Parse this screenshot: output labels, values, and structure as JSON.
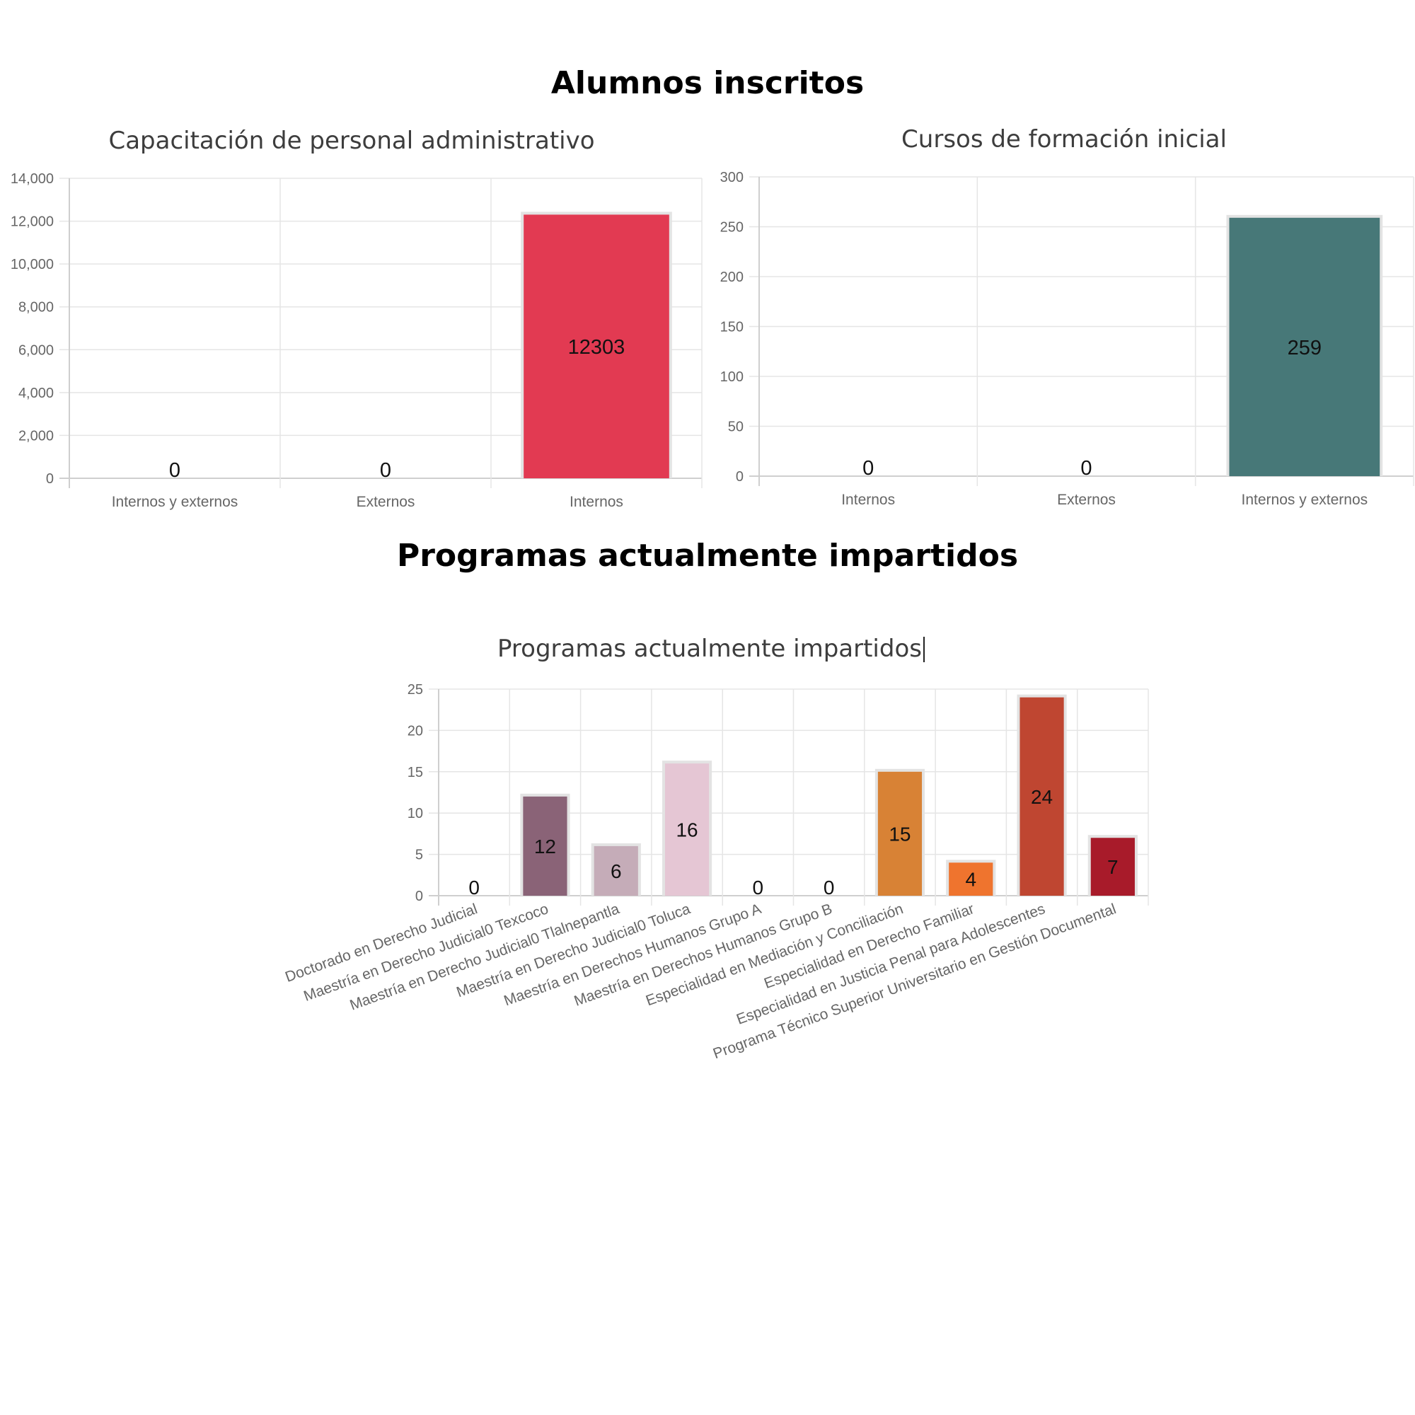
{
  "headings": {
    "alumnos": "Alumnos inscritos",
    "programas": "Programas actualmente impartidos"
  },
  "chart_data": [
    {
      "type": "bar",
      "title": "Capacitación de personal administrativo",
      "categories": [
        "Internos y externos",
        "Externos",
        "Internos"
      ],
      "values": [
        0,
        0,
        12303
      ],
      "colors": [
        "#e23a52",
        "#e23a52",
        "#e23a52"
      ],
      "ylim": [
        0,
        14000
      ],
      "yticks": [
        0,
        2000,
        4000,
        6000,
        8000,
        10000,
        12000,
        14000
      ],
      "ytick_labels": [
        "0",
        "2,000",
        "4,000",
        "6,000",
        "8,000",
        "10,000",
        "12,000",
        "14,000"
      ],
      "xlabel": "",
      "ylabel": "",
      "grid": true,
      "legend": "none"
    },
    {
      "type": "bar",
      "title": "Cursos de formación inicial",
      "categories": [
        "Internos",
        "Externos",
        "Internos y externos"
      ],
      "values": [
        0,
        0,
        259
      ],
      "colors": [
        "#477878",
        "#477878",
        "#477878"
      ],
      "ylim": [
        0,
        300
      ],
      "yticks": [
        0,
        50,
        100,
        150,
        200,
        250,
        300
      ],
      "ytick_labels": [
        "0",
        "50",
        "100",
        "150",
        "200",
        "250",
        "300"
      ],
      "xlabel": "",
      "ylabel": "",
      "grid": true,
      "legend": "none"
    },
    {
      "type": "bar",
      "title": "Programas actualmente impartidos",
      "categories": [
        "Doctorado en Derecho Judicial",
        "Maestría en Derecho Judicial0 Texcoco",
        "Maestría en Derecho Judicial0 Tlalnepantla",
        "Maestría en Derecho Judicial0 Toluca",
        "Maestría en Derechos Humanos Grupo A",
        "Maestría en Derechos Humanos Grupo B",
        "Especialidad en Mediación y Conciliación",
        "Especialidad en Derecho Familiar",
        "Especialidad en Justicia Penal para Adolescentes",
        "Programa Técnico Superior Universitario en Gestión Documental"
      ],
      "values": [
        0,
        12,
        6,
        16,
        0,
        0,
        15,
        4,
        24,
        7
      ],
      "colors": [
        "#8a6377",
        "#8a6377",
        "#c5acb8",
        "#e5c6d4",
        "#8a6377",
        "#8a6377",
        "#d88235",
        "#ef742e",
        "#bf4631",
        "#a81b2a"
      ],
      "ylim": [
        0,
        25
      ],
      "yticks": [
        0,
        5,
        10,
        15,
        20,
        25
      ],
      "ytick_labels": [
        "0",
        "5",
        "10",
        "15",
        "20",
        "25"
      ],
      "xlabel": "",
      "ylabel": "",
      "grid": true,
      "legend": "none"
    }
  ]
}
